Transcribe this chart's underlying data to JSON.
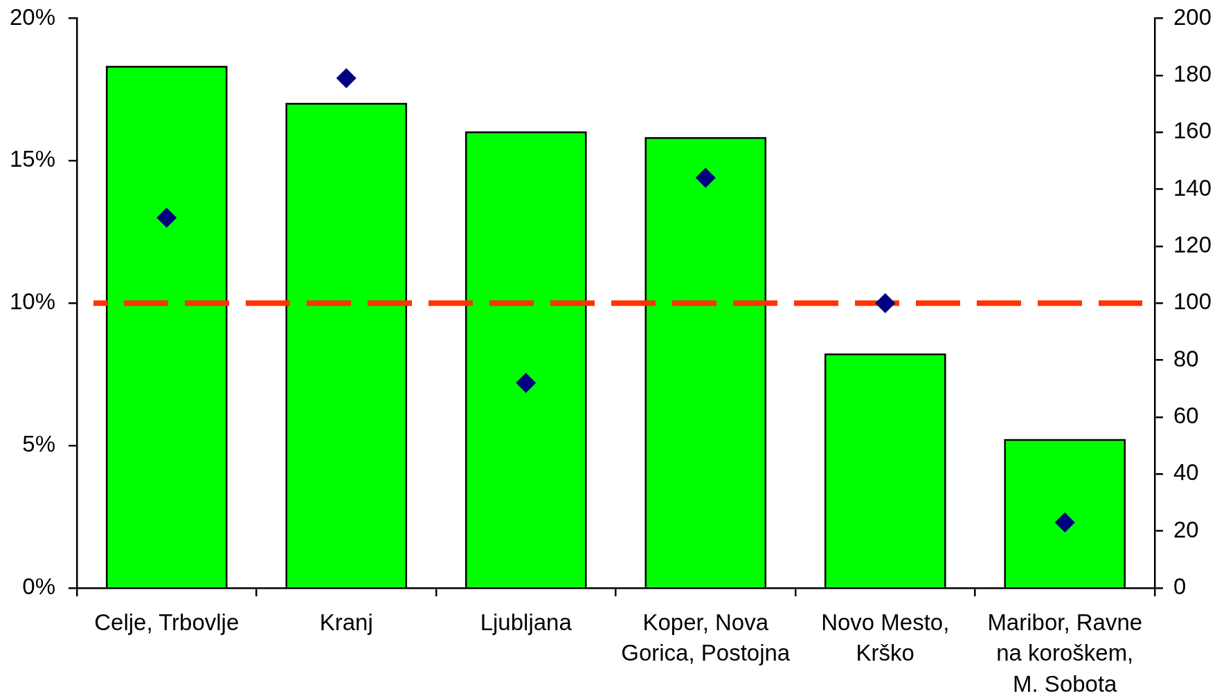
{
  "chart_data": {
    "type": "bar",
    "categories": [
      "Celje, Trbovlje",
      "Kranj",
      "Ljubljana",
      "Koper, Nova Gorica, Postojna",
      "Novo Mesto, Krško",
      "Maribor, Ravne na koroškem, M. Sobota"
    ],
    "series": [
      {
        "color": "#00ff00",
        "values": [
          18.3,
          17.0,
          16.0,
          15.8,
          8.2,
          5.2
        ]
      },
      {
        "type": "scatter",
        "axis": "y2",
        "color": "#000080",
        "marker": "diamond",
        "x": [
          "Celje, Trbovlje",
          "Kranj",
          "Ljubljana",
          "Koper, Nova Gorica, Postojna",
          "Novo Mesto, Krško",
          "Maribor, Ravne na koroškem, M. Sobota"
        ],
        "values": [
          130,
          179,
          72,
          144,
          100,
          23
        ]
      }
    ],
    "ylim": [
      0,
      20
    ],
    "yticks": [
      {
        "value": 0,
        "label": "0%"
      },
      {
        "value": 5,
        "label": "5%"
      },
      {
        "value": 10,
        "label": "10%"
      },
      {
        "value": 15,
        "label": "15%"
      },
      {
        "value": 20,
        "label": "20%"
      }
    ],
    "y2lim": [
      0,
      200
    ],
    "y2ticks": [
      0,
      20,
      40,
      60,
      80,
      100,
      120,
      140,
      160,
      180,
      200
    ],
    "ref_lines": [
      {
        "axis": "y2",
        "value": 100,
        "color": "#ff3300",
        "line_style": "dashed"
      }
    ]
  }
}
